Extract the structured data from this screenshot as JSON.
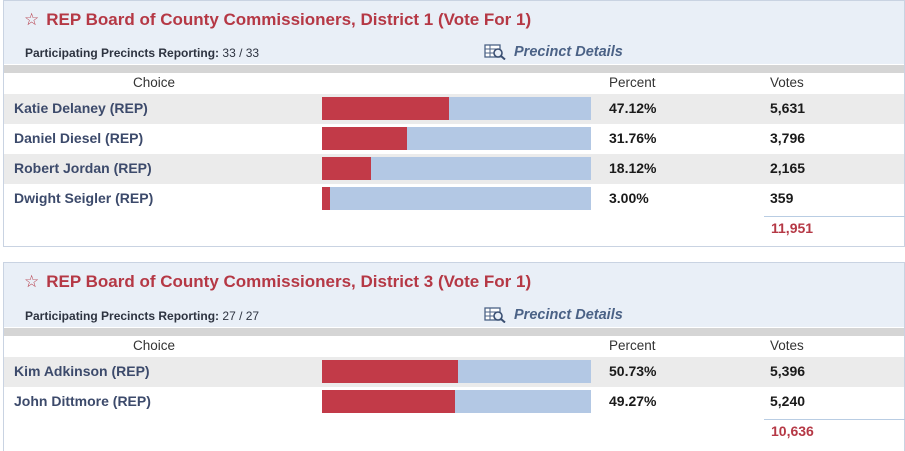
{
  "races": [
    {
      "title": "REP Board of County Commissioners, District 1 (Vote For 1)",
      "precincts_label": "Participating Precincts Reporting:",
      "precincts_value": "33 / 33",
      "details_label": "Precinct Details",
      "col_choice": "Choice",
      "col_percent": "Percent",
      "col_votes": "Votes",
      "candidates": [
        {
          "name": "Katie Delaney (REP)",
          "percent": "47.12%",
          "share": 0.4712,
          "votes": "5,631"
        },
        {
          "name": "Daniel Diesel (REP)",
          "percent": "31.76%",
          "share": 0.3176,
          "votes": "3,796"
        },
        {
          "name": "Robert Jordan (REP)",
          "percent": "18.12%",
          "share": 0.1812,
          "votes": "2,165"
        },
        {
          "name": "Dwight Seigler (REP)",
          "percent": "3.00%",
          "share": 0.03,
          "votes": "359"
        }
      ],
      "total": "11,951"
    },
    {
      "title": "REP Board of County Commissioners, District 3 (Vote For 1)",
      "precincts_label": "Participating Precincts Reporting:",
      "precincts_value": "27 / 27",
      "details_label": "Precinct Details",
      "col_choice": "Choice",
      "col_percent": "Percent",
      "col_votes": "Votes",
      "candidates": [
        {
          "name": "Kim Adkinson (REP)",
          "percent": "50.73%",
          "share": 0.5073,
          "votes": "5,396"
        },
        {
          "name": "John Dittmore (REP)",
          "percent": "49.27%",
          "share": 0.4927,
          "votes": "5,240"
        }
      ],
      "total": "10,636"
    }
  ],
  "colors": {
    "accent": "#b53845",
    "bar_fill": "#c23a48",
    "bar_track": "#b3c8e4",
    "header_bg": "#e9eff7"
  },
  "icons": {
    "title": "star-outline-icon",
    "details": "magnifier-table-icon"
  }
}
